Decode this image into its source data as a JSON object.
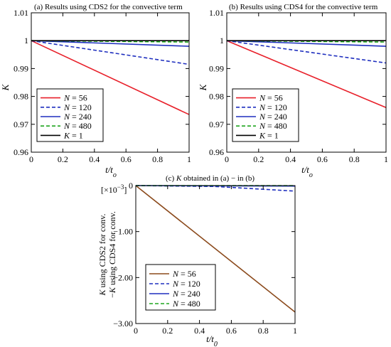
{
  "chart_data": [
    {
      "type": "line",
      "title": "(a) Results using CDS2 for the convective term",
      "xlabel": "t/t_o",
      "ylabel": "K",
      "xlim": [
        0,
        1
      ],
      "ylim": [
        0.96,
        1.01
      ],
      "xticks": [
        0,
        0.2,
        0.4,
        0.6,
        0.8,
        1
      ],
      "yticks": [
        0.96,
        0.97,
        0.98,
        0.99,
        1,
        1.01
      ],
      "xtick_labels": [
        "0",
        "0.2",
        "0.4",
        "0.6",
        "0.8",
        "1"
      ],
      "ytick_labels": [
        "0.96",
        "0.97",
        "0.98",
        "0.99",
        "1",
        "1.01"
      ],
      "grid": false,
      "legend_position": "bottom-left",
      "series": [
        {
          "name": "N = 56",
          "label_var": "N",
          "label_val": " = 56",
          "color": "#e8202a",
          "dash": "solid",
          "x": [
            0,
            1
          ],
          "y": [
            1,
            0.9735
          ]
        },
        {
          "name": "N = 120",
          "label_var": "N",
          "label_val": " = 120",
          "color": "#1f2fbf",
          "dash": "dashed",
          "x": [
            0,
            1
          ],
          "y": [
            1,
            0.9915
          ]
        },
        {
          "name": "N = 240",
          "label_var": "N",
          "label_val": " = 240",
          "color": "#1f2fbf",
          "dash": "solid",
          "x": [
            0,
            1
          ],
          "y": [
            1,
            0.998
          ]
        },
        {
          "name": "N = 480",
          "label_var": "N",
          "label_val": " = 480",
          "color": "#1fa51f",
          "dash": "dashed",
          "x": [
            0,
            1
          ],
          "y": [
            1,
            0.9995
          ]
        },
        {
          "name": "K = 1",
          "label_var": "K",
          "label_val": " = 1",
          "color": "#000000",
          "dash": "solid",
          "x": [
            0,
            1
          ],
          "y": [
            1,
            1
          ]
        }
      ]
    },
    {
      "type": "line",
      "title": "(b) Results using CDS4 for the convective term",
      "xlabel": "t/t_o",
      "ylabel": "K",
      "xlim": [
        0,
        1
      ],
      "ylim": [
        0.96,
        1.01
      ],
      "xticks": [
        0,
        0.2,
        0.4,
        0.6,
        0.8,
        1
      ],
      "yticks": [
        0.96,
        0.97,
        0.98,
        0.99,
        1,
        1.01
      ],
      "xtick_labels": [
        "0",
        "0.2",
        "0.4",
        "0.6",
        "0.8",
        "1"
      ],
      "ytick_labels": [
        "0.96",
        "0.97",
        "0.98",
        "0.99",
        "1",
        "1.01"
      ],
      "grid": false,
      "legend_position": "bottom-left",
      "series": [
        {
          "name": "N = 56",
          "label_var": "N",
          "label_val": " = 56",
          "color": "#e8202a",
          "dash": "solid",
          "x": [
            0,
            1
          ],
          "y": [
            1,
            0.976
          ]
        },
        {
          "name": "N = 120",
          "label_var": "N",
          "label_val": " = 120",
          "color": "#1f2fbf",
          "dash": "dashed",
          "x": [
            0,
            1
          ],
          "y": [
            1,
            0.992
          ]
        },
        {
          "name": "N = 240",
          "label_var": "N",
          "label_val": " = 240",
          "color": "#1f2fbf",
          "dash": "solid",
          "x": [
            0,
            1
          ],
          "y": [
            1,
            0.998
          ]
        },
        {
          "name": "N = 480",
          "label_var": "N",
          "label_val": " = 480",
          "color": "#1fa51f",
          "dash": "dashed",
          "x": [
            0,
            1
          ],
          "y": [
            1,
            0.9995
          ]
        },
        {
          "name": "K = 1",
          "label_var": "K",
          "label_val": " = 1",
          "color": "#000000",
          "dash": "solid",
          "x": [
            0,
            1
          ],
          "y": [
            1,
            1
          ]
        }
      ]
    },
    {
      "type": "line",
      "title": "(c) K obtained in (a) − in (b)",
      "title_parts": [
        "(c) ",
        "K",
        " obtained in (a) − in (b)"
      ],
      "xlabel": "t/t_0",
      "ylabel_lines": [
        "K using CDS2 for conv.",
        "−K using CDS4 for conv."
      ],
      "scale_label": "[×10",
      "scale_exp": "−3",
      "scale_close": "]",
      "xlim": [
        0,
        1
      ],
      "ylim": [
        -3,
        0
      ],
      "xticks": [
        0,
        0.2,
        0.4,
        0.6,
        0.8,
        1
      ],
      "yticks": [
        -3,
        -2,
        -1,
        0
      ],
      "xtick_labels": [
        "0",
        "0.2",
        "0.4",
        "0.6",
        "0.8",
        "1"
      ],
      "ytick_labels": [
        "−3.00",
        "−2.00",
        "−1.00",
        "0"
      ],
      "grid": false,
      "legend_position": "bottom-left",
      "series": [
        {
          "name": "N = 56",
          "label_var": "N",
          "label_val": " = 56",
          "color": "#8b4a1c",
          "dash": "solid",
          "x": [
            0,
            1
          ],
          "y": [
            0,
            -2.75
          ]
        },
        {
          "name": "N = 120",
          "label_var": "N",
          "label_val": " = 120",
          "color": "#1f2fbf",
          "dash": "dashed",
          "x": [
            0,
            0.5,
            1
          ],
          "y": [
            0,
            -0.02,
            -0.12
          ]
        },
        {
          "name": "N = 240",
          "label_var": "N",
          "label_val": " = 240",
          "color": "#1f2fbf",
          "dash": "solid",
          "x": [
            0,
            1
          ],
          "y": [
            0,
            -0.01
          ]
        },
        {
          "name": "N = 480",
          "label_var": "N",
          "label_val": " = 480",
          "color": "#1fa51f",
          "dash": "dashed",
          "x": [
            0,
            1
          ],
          "y": [
            0,
            0
          ]
        }
      ]
    }
  ]
}
